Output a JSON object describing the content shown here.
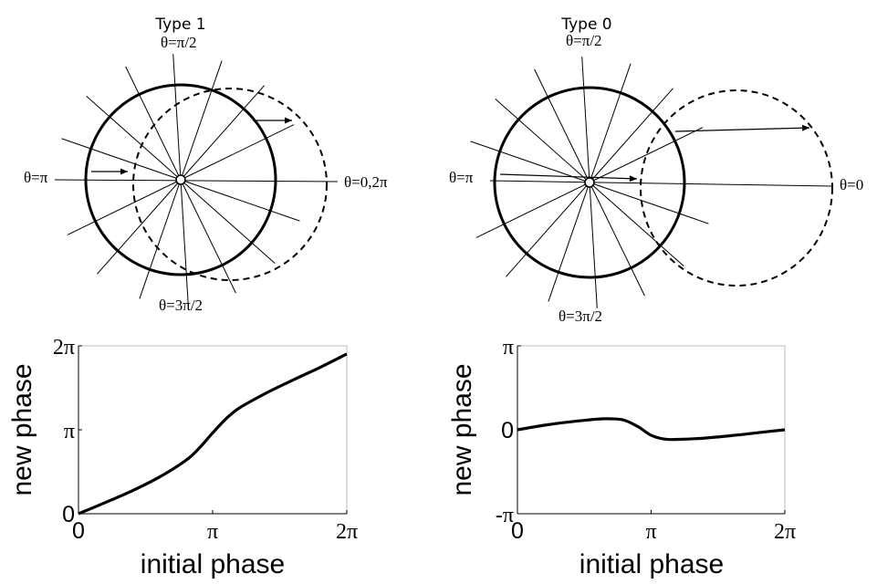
{
  "panels": {
    "type1": {
      "title": "Type 1",
      "labels": {
        "top": "θ=π/2",
        "left": "θ=π",
        "right": "θ=0,2π",
        "bottom": "θ=3π/2"
      }
    },
    "type0": {
      "title": "Type 0",
      "labels": {
        "top": "θ=π/2",
        "left": "θ=π",
        "right": "θ=0",
        "bottom": "θ=3π/2"
      }
    }
  },
  "chart_data": [
    {
      "type": "line",
      "xlabel": "initial phase",
      "ylabel": "new phase",
      "x_ticks": [
        "0",
        "π",
        "2π"
      ],
      "y_ticks": [
        "0",
        "π",
        "2π"
      ],
      "xlim": [
        0,
        6.2832
      ],
      "ylim": [
        0,
        6.2832
      ],
      "series": [
        {
          "x": [
            0,
            0.63,
            1.26,
            1.88,
            2.51,
            2.83,
            3.14,
            3.46,
            3.77,
            4.4,
            5.03,
            5.65,
            6.2832
          ],
          "y": [
            0,
            0.42,
            0.86,
            1.36,
            1.99,
            2.46,
            3.02,
            3.56,
            3.96,
            4.52,
            5.01,
            5.47,
            5.98
          ]
        }
      ]
    },
    {
      "type": "line",
      "xlabel": "initial phase",
      "ylabel": "new phase",
      "x_ticks": [
        "0",
        "π",
        "2π"
      ],
      "y_ticks": [
        "-π",
        "0",
        "π"
      ],
      "xlim": [
        0,
        6.2832
      ],
      "ylim": [
        -3.1416,
        3.1416
      ],
      "series": [
        {
          "x": [
            0,
            0.63,
            1.26,
            1.88,
            2.2,
            2.51,
            2.83,
            3.14,
            3.46,
            3.77,
            4.4,
            5.03,
            5.65,
            6.2832
          ],
          "y": [
            0,
            0.17,
            0.3,
            0.4,
            0.41,
            0.36,
            0.12,
            -0.2,
            -0.35,
            -0.36,
            -0.31,
            -0.22,
            -0.11,
            0
          ]
        }
      ]
    }
  ]
}
